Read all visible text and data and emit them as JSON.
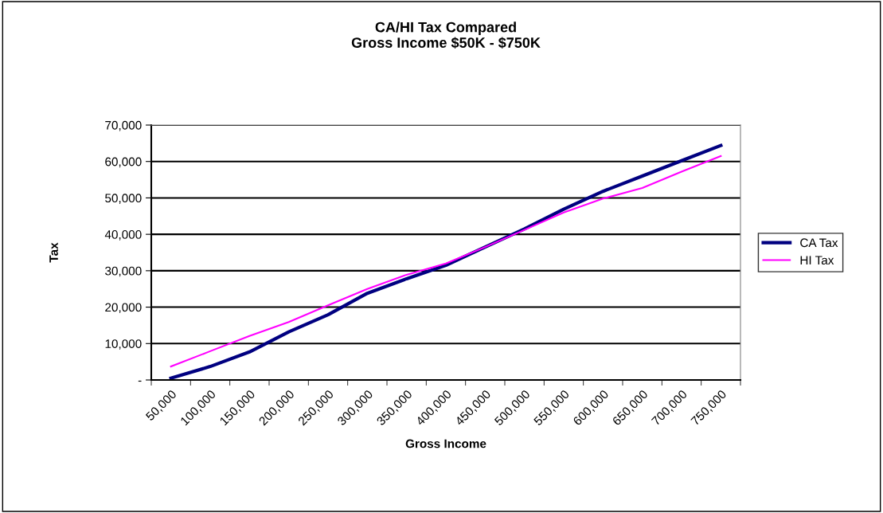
{
  "chart_data": {
    "type": "line",
    "title": "CA/HI Tax Compared\nGross Income $50K - $750K",
    "xlabel": "Gross Income",
    "ylabel": "Tax",
    "categories": [
      "50,000",
      "100,000",
      "150,000",
      "200,000",
      "250,000",
      "300,000",
      "350,000",
      "400,000",
      "450,000",
      "500,000",
      "550,000",
      "600,000",
      "650,000",
      "700,000",
      "750,000"
    ],
    "series": [
      {
        "name": "CA Tax",
        "color": "#000080",
        "values": [
          500,
          3700,
          7700,
          13200,
          17900,
          23800,
          27800,
          31500,
          36500,
          41500,
          46900,
          51800,
          56000,
          60200,
          64400
        ]
      },
      {
        "name": "HI Tax",
        "color": "#ff00ff",
        "values": [
          3700,
          7900,
          12100,
          15900,
          20500,
          25000,
          28900,
          32000,
          36500,
          41200,
          46000,
          49800,
          52700,
          57200,
          61500
        ]
      }
    ],
    "ylim": [
      0,
      70000
    ],
    "yticks": [
      {
        "value": 0,
        "label": "-"
      },
      {
        "value": 10000,
        "label": "10,000"
      },
      {
        "value": 20000,
        "label": "20,000"
      },
      {
        "value": 30000,
        "label": "30,000"
      },
      {
        "value": 40000,
        "label": "40,000"
      },
      {
        "value": 50000,
        "label": "50,000"
      },
      {
        "value": 60000,
        "label": "60,000"
      },
      {
        "value": 70000,
        "label": "70,000"
      }
    ],
    "grid": "y",
    "legend": "right",
    "marker": "none",
    "line_style": "solid"
  }
}
